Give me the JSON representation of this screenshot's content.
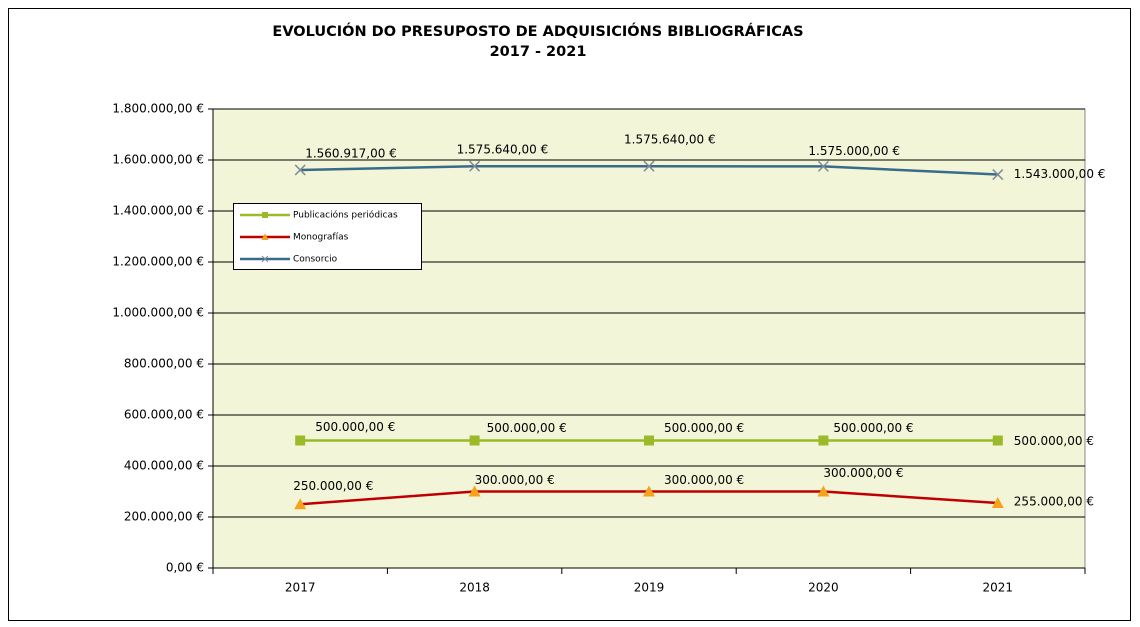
{
  "chart_data": {
    "type": "line",
    "title": "EVOLUCIÓN DO PRESUPOSTO DE ADQUISICIÓNS BIBLIOGRÁFICAS",
    "subtitle": "2017 - 2021",
    "categories": [
      "2017",
      "2018",
      "2019",
      "2020",
      "2021"
    ],
    "series": [
      {
        "name": "Publicacións periódicas",
        "color": "#9aba2a",
        "marker_color": "#9aba2a",
        "marker": "square",
        "values": [
          500000,
          500000,
          500000,
          500000,
          500000
        ],
        "value_labels": [
          "500.000,00 €",
          "500.000,00 €",
          "500.000,00 €",
          "500.000,00 €",
          "500.000,00 €"
        ]
      },
      {
        "name": "Monografías",
        "color": "#c00000",
        "marker_color": "#f5a21c",
        "marker": "triangle",
        "values": [
          250000,
          300000,
          300000,
          300000,
          255000
        ],
        "value_labels": [
          "250.000,00 €",
          "300.000,00 €",
          "300.000,00 €",
          "300.000,00 €",
          "255.000,00 €"
        ]
      },
      {
        "name": "Consorcio",
        "color": "#3a6b8a",
        "marker_color": "#7f8c96",
        "marker": "x",
        "values": [
          1560917,
          1575640,
          1575640,
          1575000,
          1543000
        ],
        "value_labels": [
          "1.560.917,00 €",
          "1.575.640,00 €",
          "1.575.640,00 €",
          "1.575.000,00 €",
          "1.543.000,00 €"
        ]
      }
    ],
    "ylim": [
      0,
      1800000
    ],
    "yticks": [
      {
        "value": 0,
        "label": "0,00 €"
      },
      {
        "value": 200000,
        "label": "200.000,00 €"
      },
      {
        "value": 400000,
        "label": "400.000,00 €"
      },
      {
        "value": 600000,
        "label": "600.000,00 €"
      },
      {
        "value": 800000,
        "label": "800.000,00 €"
      },
      {
        "value": 1000000,
        "label": "1.000.000,00 €"
      },
      {
        "value": 1200000,
        "label": "1.200.000,00 €"
      },
      {
        "value": 1400000,
        "label": "1.400.000,00 €"
      },
      {
        "value": 1600000,
        "label": "1.600.000,00 €"
      },
      {
        "value": 1800000,
        "label": "1.800.000,00 €"
      }
    ],
    "grid": true,
    "plot_background": "#f3f5d8"
  }
}
